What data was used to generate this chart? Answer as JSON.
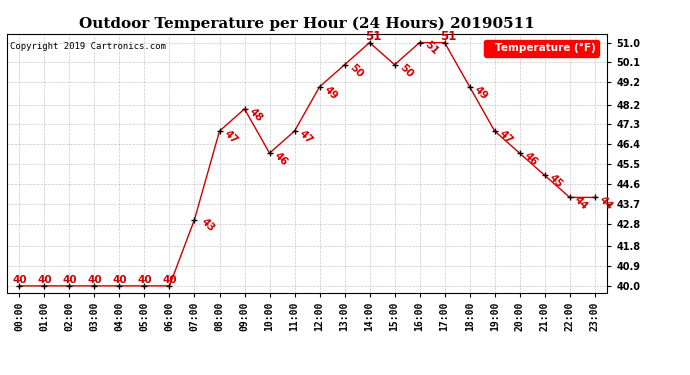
{
  "title": "Outdoor Temperature per Hour (24 Hours) 20190511",
  "copyright": "Copyright 2019 Cartronics.com",
  "legend_label": "Temperature (°F)",
  "hours": [
    0,
    1,
    2,
    3,
    4,
    5,
    6,
    7,
    8,
    9,
    10,
    11,
    12,
    13,
    14,
    15,
    16,
    17,
    18,
    19,
    20,
    21,
    22,
    23
  ],
  "temps": [
    40,
    40,
    40,
    40,
    40,
    40,
    40,
    43,
    47,
    48,
    46,
    47,
    49,
    50,
    51,
    50,
    51,
    51,
    49,
    47,
    46,
    45,
    44,
    44
  ],
  "x_labels": [
    "00:00",
    "01:00",
    "02:00",
    "03:00",
    "04:00",
    "05:00",
    "06:00",
    "07:00",
    "08:00",
    "09:00",
    "10:00",
    "11:00",
    "12:00",
    "13:00",
    "14:00",
    "15:00",
    "16:00",
    "17:00",
    "18:00",
    "19:00",
    "20:00",
    "21:00",
    "22:00",
    "23:00"
  ],
  "ylim": [
    39.7,
    51.4
  ],
  "yticks": [
    40.0,
    40.9,
    41.8,
    42.8,
    43.7,
    44.6,
    45.5,
    46.4,
    47.3,
    48.2,
    49.2,
    50.1,
    51.0
  ],
  "line_color": "#cc0000",
  "marker_color": "#000000",
  "label_color": "#cc0000",
  "bg_color": "#ffffff",
  "grid_color": "#bbbbbb",
  "title_fontsize": 11,
  "label_fontsize": 7,
  "annotation_fontsize": 7.5,
  "copyright_fontsize": 6.5
}
